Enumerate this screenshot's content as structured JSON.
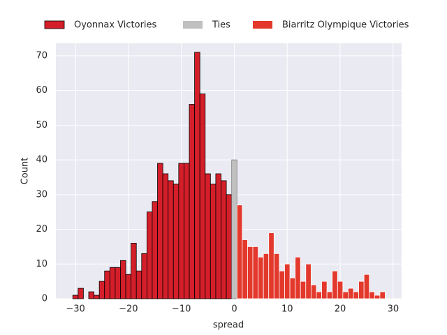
{
  "chart_data": {
    "type": "histogram",
    "x_label": "spread",
    "y_label": "Count",
    "xlim": [
      -33.7,
      31.6
    ],
    "ylim": [
      0,
      73.6
    ],
    "xticks": [
      {
        "value": -30,
        "label": "−30"
      },
      {
        "value": -20,
        "label": "−20"
      },
      {
        "value": -10,
        "label": "−10"
      },
      0,
      10,
      20,
      30
    ],
    "yticks": [
      0,
      10,
      20,
      30,
      40,
      50,
      60,
      70
    ],
    "grid": true,
    "legend": "top",
    "series": [
      {
        "name": "Oyonnax Victories",
        "color": "#d41f2a",
        "edgecolor": "#000000",
        "bins": [
          -30.5,
          -29.5,
          -28.5,
          -27.5,
          -26.5,
          -25.5,
          -24.5,
          -23.5,
          -22.5,
          -21.5,
          -20.5,
          -19.5,
          -18.5,
          -17.5,
          -16.5,
          -15.5,
          -14.5,
          -13.5,
          -12.5,
          -11.5,
          -10.5,
          -9.5,
          -8.5,
          -7.5,
          -6.5,
          -5.5,
          -4.5,
          -3.5,
          -2.5,
          -1.5,
          -0.5
        ],
        "values": [
          1,
          3,
          0,
          2,
          1,
          5,
          8,
          9,
          9,
          11,
          7,
          16,
          8,
          13,
          25,
          28,
          39,
          36,
          34,
          33,
          39,
          39,
          56,
          71,
          59,
          36,
          33,
          36,
          34,
          30
        ]
      },
      {
        "name": "Ties",
        "color": "#c0c0c0",
        "edgecolor": "#808080",
        "bins": [
          -0.5,
          0.5
        ],
        "values": [
          40
        ]
      },
      {
        "name": "Biarritz Olympique Victories",
        "color": "#e3392c",
        "edgecolor": "#ffffff",
        "bins": [
          0.5,
          1.5,
          2.5,
          3.5,
          4.5,
          5.5,
          6.5,
          7.5,
          8.5,
          9.5,
          10.5,
          11.5,
          12.5,
          13.5,
          14.5,
          15.5,
          16.5,
          17.5,
          18.5,
          19.5,
          20.5,
          21.5,
          22.5,
          23.5,
          24.5,
          25.5,
          26.5,
          27.5,
          28.5
        ],
        "values": [
          27,
          17,
          15,
          15,
          12,
          13,
          19,
          13,
          8,
          10,
          6,
          12,
          5,
          10,
          4,
          2,
          5,
          2,
          8,
          5,
          2,
          3,
          2,
          5,
          7,
          2,
          1,
          2
        ]
      }
    ]
  }
}
